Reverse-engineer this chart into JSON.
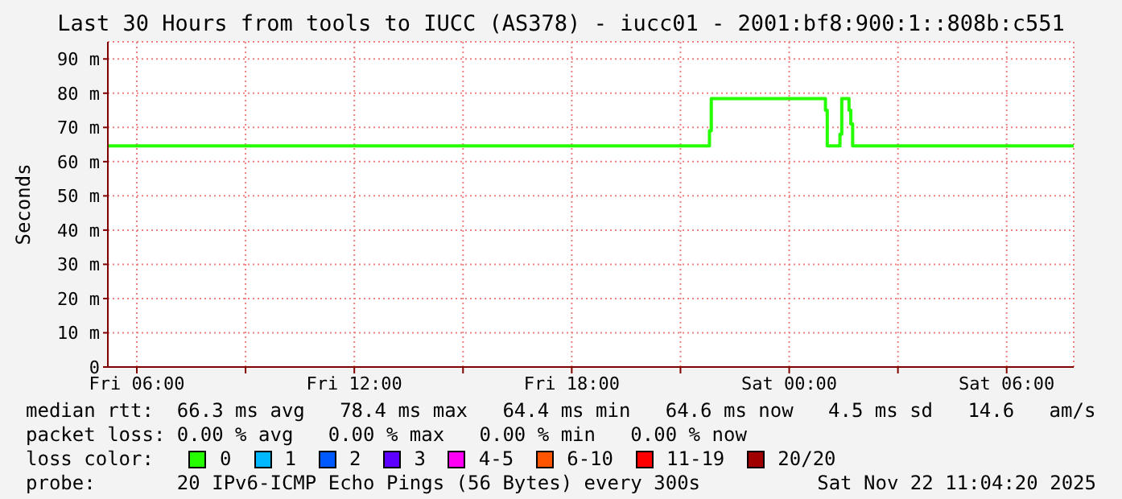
{
  "chart_data": {
    "type": "step",
    "title": "Last 30 Hours from tools to IUCC (AS378) - iucc01 - 2001:bf8:900:1::808b:c551",
    "ylabel": "Seconds",
    "legend_title": "loss color:",
    "x": [
      "2025-11-21T05:12",
      "2025-11-21T21:45",
      "2025-11-21T21:48",
      "2025-11-21T21:51",
      "2025-11-22T00:57",
      "2025-11-22T01:00",
      "2025-11-22T01:03",
      "2025-11-22T01:21",
      "2025-11-22T01:24",
      "2025-11-22T01:27",
      "2025-11-22T01:36",
      "2025-11-22T01:39",
      "2025-11-22T01:42",
      "2025-11-22T01:45",
      "2025-11-22T07:51"
    ],
    "series": [
      {
        "name": "0",
        "color": "#26ff00",
        "values": [
          64.6,
          64.6,
          69,
          78.4,
          78.4,
          75,
          64.6,
          64.6,
          68,
          78.4,
          78.4,
          75,
          71,
          64.6,
          64.6
        ]
      },
      {
        "name": "1",
        "color": "#00b8ff",
        "values": [
          null,
          null,
          null,
          null,
          null,
          null,
          null,
          null,
          null,
          null,
          null,
          null,
          null,
          null,
          null
        ]
      },
      {
        "name": "2",
        "color": "#0059ff",
        "values": [
          null,
          null,
          null,
          null,
          null,
          null,
          null,
          null,
          null,
          null,
          null,
          null,
          null,
          null,
          null
        ]
      },
      {
        "name": "3",
        "color": "#5e00ff",
        "values": [
          null,
          null,
          null,
          null,
          null,
          null,
          null,
          null,
          null,
          null,
          null,
          null,
          null,
          null,
          null
        ]
      },
      {
        "name": "4-5",
        "color": "#ff00f5",
        "values": [
          null,
          null,
          null,
          null,
          null,
          null,
          null,
          null,
          null,
          null,
          null,
          null,
          null,
          null,
          null
        ]
      },
      {
        "name": "6-10",
        "color": "#ff5500",
        "values": [
          null,
          null,
          null,
          null,
          null,
          null,
          null,
          null,
          null,
          null,
          null,
          null,
          null,
          null,
          null
        ]
      },
      {
        "name": "11-19",
        "color": "#ff0000",
        "values": [
          null,
          null,
          null,
          null,
          null,
          null,
          null,
          null,
          null,
          null,
          null,
          null,
          null,
          null,
          null
        ]
      },
      {
        "name": "20/20",
        "color": "#a10000",
        "values": [
          null,
          null,
          null,
          null,
          null,
          null,
          null,
          null,
          null,
          null,
          null,
          null,
          null,
          null,
          null
        ]
      }
    ],
    "xlim": [
      "2025-11-21T05:12",
      "2025-11-22T07:51"
    ],
    "xticks": [
      {
        "value": "2025-11-21T06:00",
        "label": "Fri 06:00"
      },
      {
        "value": "2025-11-21T09:00",
        "label": null
      },
      {
        "value": "2025-11-21T12:00",
        "label": "Fri 12:00"
      },
      {
        "value": "2025-11-21T15:00",
        "label": null
      },
      {
        "value": "2025-11-21T18:00",
        "label": "Fri 18:00"
      },
      {
        "value": "2025-11-21T21:00",
        "label": null
      },
      {
        "value": "2025-11-22T00:00",
        "label": "Sat 00:00"
      },
      {
        "value": "2025-11-22T03:00",
        "label": null
      },
      {
        "value": "2025-11-22T06:00",
        "label": "Sat 06:00"
      }
    ],
    "ylim": [
      0,
      95
    ],
    "yticks": [
      0,
      {
        "value": 10,
        "label": "10 m"
      },
      {
        "value": 20,
        "label": "20 m"
      },
      {
        "value": 30,
        "label": "30 m"
      },
      {
        "value": 40,
        "label": "40 m"
      },
      {
        "value": 50,
        "label": "50 m"
      },
      {
        "value": 60,
        "label": "60 m"
      },
      {
        "value": 70,
        "label": "70 m"
      },
      {
        "value": 80,
        "label": "80 m"
      },
      {
        "value": 90,
        "label": "90 m"
      }
    ],
    "grid": true,
    "legend": "bottom",
    "annotations": [
      "median rtt:  66.3 ms avg   78.4 ms max   64.4 ms min   64.6 ms now   4.5 ms sd   14.6   am/s",
      "packet loss: 0.00 % avg   0.00 % max   0.00 % min   0.00 % now",
      "probe:       20 IPv6-ICMP Echo Pings (56 Bytes) every 300s",
      "Sat Nov 22 11:04:20 2025"
    ]
  }
}
